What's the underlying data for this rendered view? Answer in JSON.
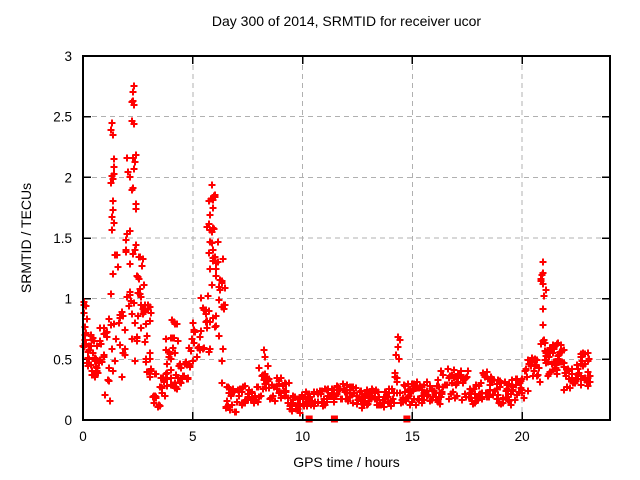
{
  "chart_data": {
    "type": "scatter",
    "title": "Day 300 of 2014, SRMTID for receiver ucor",
    "xlabel": "GPS time / hours",
    "ylabel": "SRMTID / TECUs",
    "xlim": [
      0,
      24
    ],
    "ylim": [
      0,
      3
    ],
    "xticks": [
      {
        "v": 0,
        "label": "0"
      },
      {
        "v": 5,
        "label": "5"
      },
      {
        "v": 10,
        "label": "10"
      },
      {
        "v": 15,
        "label": "15"
      },
      {
        "v": 20,
        "label": "20"
      }
    ],
    "yticks": [
      {
        "v": 0,
        "label": "0"
      },
      {
        "v": 0.5,
        "label": "0.5"
      },
      {
        "v": 1,
        "label": "1"
      },
      {
        "v": 1.5,
        "label": "1.5"
      },
      {
        "v": 2,
        "label": "2"
      },
      {
        "v": 2.5,
        "label": "2.5"
      },
      {
        "v": 3,
        "label": "3"
      }
    ],
    "grid": {
      "show": true,
      "style": "dashed",
      "color": "#b0b0b0"
    },
    "colors": {
      "marker": "#ff0000",
      "border": "#000000",
      "background": "#ffffff",
      "text": "#000000"
    },
    "legend": {
      "show": false
    },
    "series": [
      {
        "name": "srmtid-plus-markers",
        "marker": "plus",
        "marker_size": 7,
        "color": "#ff0000",
        "seed": 20141300,
        "envelope_segments": [
          [
            0.0,
            0.2,
            7,
            2,
            0.45,
            1.0
          ],
          [
            0.2,
            0.7,
            12,
            3,
            0.33,
            0.72
          ],
          [
            0.7,
            1.0,
            7,
            2,
            0.45,
            0.78
          ],
          [
            1.0,
            1.25,
            6,
            3,
            0.15,
            0.9
          ],
          [
            1.25,
            1.45,
            5,
            3,
            1.5,
            2.45
          ],
          [
            1.25,
            1.62,
            8,
            3,
            0.35,
            1.55
          ],
          [
            1.62,
            1.95,
            8,
            2,
            0.35,
            0.95
          ],
          [
            1.95,
            2.2,
            6,
            3,
            0.7,
            2.2
          ],
          [
            2.2,
            2.45,
            6,
            4,
            1.2,
            2.72
          ],
          [
            2.2,
            2.5,
            7,
            2,
            0.35,
            1.2
          ],
          [
            2.5,
            2.85,
            8,
            3,
            0.55,
            1.35
          ],
          [
            2.85,
            3.15,
            7,
            3,
            0.35,
            0.95
          ],
          [
            3.15,
            3.75,
            13,
            2,
            0.1,
            0.38
          ],
          [
            3.75,
            4.35,
            13,
            3,
            0.25,
            0.68
          ],
          [
            4.05,
            4.3,
            4,
            1,
            0.68,
            0.86
          ],
          [
            4.35,
            4.8,
            10,
            2,
            0.3,
            0.52
          ],
          [
            4.8,
            5.35,
            12,
            2,
            0.42,
            0.8
          ],
          [
            5.35,
            5.6,
            6,
            2,
            0.55,
            1.05
          ],
          [
            5.6,
            6.15,
            12,
            4,
            0.55,
            1.62
          ],
          [
            5.72,
            6.05,
            6,
            2,
            1.55,
            1.92
          ],
          [
            6.15,
            6.5,
            8,
            3,
            0.25,
            1.35
          ],
          [
            6.5,
            7.1,
            13,
            2,
            0.06,
            0.28
          ],
          [
            7.1,
            7.9,
            17,
            2,
            0.1,
            0.3
          ],
          [
            7.9,
            8.45,
            12,
            2,
            0.15,
            0.45
          ],
          [
            8.45,
            9.4,
            20,
            2,
            0.13,
            0.35
          ],
          [
            9.4,
            9.95,
            12,
            2,
            0.06,
            0.2
          ],
          [
            9.95,
            11.3,
            28,
            2,
            0.1,
            0.26
          ],
          [
            11.3,
            12.45,
            24,
            2,
            0.13,
            0.3
          ],
          [
            12.45,
            14.2,
            36,
            2,
            0.1,
            0.26
          ],
          [
            14.2,
            14.45,
            5,
            3,
            0.2,
            0.66
          ],
          [
            14.45,
            15.2,
            16,
            2,
            0.12,
            0.3
          ],
          [
            15.2,
            16.3,
            23,
            2,
            0.12,
            0.33
          ],
          [
            16.3,
            17.6,
            27,
            2,
            0.15,
            0.42
          ],
          [
            17.6,
            18.1,
            11,
            2,
            0.12,
            0.3
          ],
          [
            18.1,
            18.8,
            15,
            2,
            0.15,
            0.4
          ],
          [
            18.8,
            19.5,
            15,
            2,
            0.12,
            0.33
          ],
          [
            19.5,
            20.1,
            13,
            2,
            0.15,
            0.35
          ],
          [
            20.1,
            20.85,
            16,
            2,
            0.22,
            0.52
          ],
          [
            20.85,
            21.15,
            6,
            3,
            0.45,
            1.28
          ],
          [
            21.0,
            21.9,
            19,
            3,
            0.35,
            0.65
          ],
          [
            21.9,
            22.55,
            14,
            2,
            0.24,
            0.48
          ],
          [
            22.55,
            23.1,
            12,
            3,
            0.25,
            0.57
          ]
        ],
        "explicit_points": [
          [
            0.03,
            0.97
          ],
          [
            0.05,
            0.88
          ],
          [
            0.08,
            0.62
          ],
          [
            1.33,
            2.45
          ],
          [
            1.38,
            2.35
          ],
          [
            2.27,
            2.7
          ],
          [
            2.31,
            2.75
          ],
          [
            2.24,
            2.62
          ],
          [
            5.88,
            1.94
          ],
          [
            5.95,
            1.85
          ],
          [
            8.25,
            0.58
          ],
          [
            8.3,
            0.52
          ],
          [
            14.33,
            0.68
          ],
          [
            14.36,
            0.6
          ],
          [
            20.95,
            1.3
          ],
          [
            20.96,
            1.21
          ],
          [
            20.97,
            1.12
          ],
          [
            20.98,
            1.02
          ],
          [
            23.02,
            0.55
          ],
          [
            23.06,
            0.5
          ]
        ]
      },
      {
        "name": "flagged-epochs-square-markers",
        "marker": "square",
        "marker_size": 7,
        "color": "#ff0000",
        "points": [
          [
            10.3,
            0
          ],
          [
            11.45,
            0
          ],
          [
            14.75,
            0
          ]
        ]
      }
    ]
  }
}
